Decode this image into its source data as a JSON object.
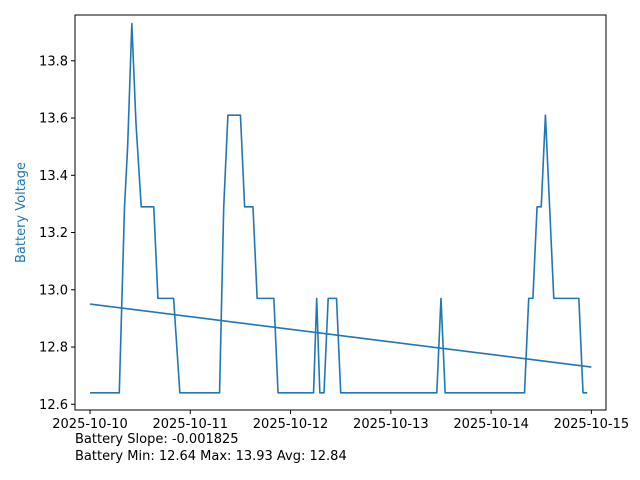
{
  "chart_data": {
    "type": "line",
    "ylabel": "Battery Voltage",
    "xlabel": "",
    "ylim": [
      12.58,
      13.96
    ],
    "xlim": [
      "2025-10-09 20:24",
      "2025-10-15 03:30"
    ],
    "x_ticks": [
      "2025-10-10",
      "2025-10-11",
      "2025-10-12",
      "2025-10-13",
      "2025-10-14",
      "2025-10-15"
    ],
    "y_ticks": [
      12.6,
      12.8,
      13.0,
      13.2,
      13.4,
      13.6,
      13.8
    ],
    "grid": false,
    "colors": {
      "line": "#1f77b4",
      "ylabel": "#1f77b4"
    },
    "series": [
      {
        "values": [
          {
            "x": "2025-10-10 00:00",
            "y": 12.64
          },
          {
            "x": "2025-10-10 07:00",
            "y": 12.64
          },
          {
            "x": "2025-10-10 08:15",
            "y": 13.29
          },
          {
            "x": "2025-10-10 09:00",
            "y": 13.5
          },
          {
            "x": "2025-10-10 10:00",
            "y": 13.93
          },
          {
            "x": "2025-10-10 11:00",
            "y": 13.58
          },
          {
            "x": "2025-10-10 12:15",
            "y": 13.29
          },
          {
            "x": "2025-10-10 15:15",
            "y": 13.29
          },
          {
            "x": "2025-10-10 16:15",
            "y": 12.97
          },
          {
            "x": "2025-10-10 20:00",
            "y": 12.97
          },
          {
            "x": "2025-10-10 21:30",
            "y": 12.64
          },
          {
            "x": "2025-10-11 07:00",
            "y": 12.64
          },
          {
            "x": "2025-10-11 08:00",
            "y": 13.29
          },
          {
            "x": "2025-10-11 09:00",
            "y": 13.61
          },
          {
            "x": "2025-10-11 12:00",
            "y": 13.61
          },
          {
            "x": "2025-10-11 13:00",
            "y": 13.29
          },
          {
            "x": "2025-10-11 15:00",
            "y": 13.29
          },
          {
            "x": "2025-10-11 16:00",
            "y": 12.97
          },
          {
            "x": "2025-10-11 20:00",
            "y": 12.97
          },
          {
            "x": "2025-10-11 21:00",
            "y": 12.64
          },
          {
            "x": "2025-10-12 05:30",
            "y": 12.64
          },
          {
            "x": "2025-10-12 06:15",
            "y": 12.97
          },
          {
            "x": "2025-10-12 07:00",
            "y": 12.64
          },
          {
            "x": "2025-10-12 08:00",
            "y": 12.64
          },
          {
            "x": "2025-10-12 09:00",
            "y": 12.97
          },
          {
            "x": "2025-10-12 11:00",
            "y": 12.97
          },
          {
            "x": "2025-10-12 12:00",
            "y": 12.64
          },
          {
            "x": "2025-10-13 11:00",
            "y": 12.64
          },
          {
            "x": "2025-10-13 12:00",
            "y": 12.97
          },
          {
            "x": "2025-10-13 13:00",
            "y": 12.64
          },
          {
            "x": "2025-10-14 08:00",
            "y": 12.64
          },
          {
            "x": "2025-10-14 09:00",
            "y": 12.97
          },
          {
            "x": "2025-10-14 10:00",
            "y": 12.97
          },
          {
            "x": "2025-10-14 11:00",
            "y": 13.29
          },
          {
            "x": "2025-10-14 12:00",
            "y": 13.29
          },
          {
            "x": "2025-10-14 13:00",
            "y": 13.61
          },
          {
            "x": "2025-10-14 15:00",
            "y": 12.97
          },
          {
            "x": "2025-10-14 21:00",
            "y": 12.97
          },
          {
            "x": "2025-10-14 22:00",
            "y": 12.64
          },
          {
            "x": "2025-10-14 23:00",
            "y": 12.64
          }
        ]
      },
      {
        "values": [
          {
            "x": "2025-10-10 00:00",
            "y": 12.95
          },
          {
            "x": "2025-10-15 00:00",
            "y": 12.73
          }
        ]
      }
    ]
  },
  "stats": {
    "slope_line": "Battery Slope: -0.001825",
    "minmax_line": "Battery Min: 12.64 Max: 13.93 Avg: 12.84"
  }
}
